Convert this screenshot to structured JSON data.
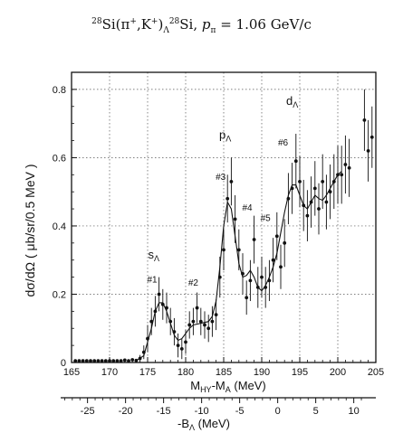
{
  "chart_data": {
    "type": "scatter",
    "title": {
      "reaction_prefix": "28",
      "reaction_main1": "Si(π",
      "reaction_sup1": "+",
      "reaction_main2": ",K",
      "reaction_sup2": "+",
      "reaction_main3": ")",
      "reaction_lambda_sub": "Λ",
      "reaction_sup3": "28",
      "reaction_main4": "Si, ",
      "momentum_symbol": "p",
      "momentum_sub": "π",
      "momentum_value": " = 1.06 GeV/c"
    },
    "ylabel": "dσ/dΩ ( μb/sr/0.5 MeV )",
    "xlabel": "M_HY-M_A  (MeV)",
    "xlabel_main": "M",
    "xlabel_sub1": "HY",
    "xlabel_mid": "-M",
    "xlabel_sub2": "A",
    "xlabel_unit": "  (MeV)",
    "xlabel2_main": "-B",
    "xlabel2_sub": "Λ",
    "xlabel2_unit": "  (MeV)",
    "xlim": [
      165,
      205
    ],
    "ylim": [
      0,
      0.85
    ],
    "xticks": [
      "165",
      "170",
      "175",
      "180",
      "185",
      "190",
      "195",
      "200",
      "205"
    ],
    "yticks": [
      "0",
      "0.2",
      "0.4",
      "0.6",
      "0.8"
    ],
    "x2_offset": 192.1,
    "x2ticks": [
      "-25",
      "-20",
      "-15",
      "-10",
      "-5",
      "0",
      "5",
      "10"
    ],
    "grid": true,
    "annotations": [
      {
        "main": "s",
        "sub": "Λ",
        "x": 175.8,
        "y": 0.305
      },
      {
        "main": "p",
        "sub": "Λ",
        "x": 185.2,
        "y": 0.655
      },
      {
        "main": "d",
        "sub": "Λ",
        "x": 194.0,
        "y": 0.755
      },
      {
        "main": "#1",
        "sub": "",
        "x": 175.6,
        "y": 0.235
      },
      {
        "main": "#2",
        "sub": "",
        "x": 181.0,
        "y": 0.225
      },
      {
        "main": "#3",
        "sub": "",
        "x": 184.6,
        "y": 0.535
      },
      {
        "main": "#4",
        "sub": "",
        "x": 188.1,
        "y": 0.445
      },
      {
        "main": "#5",
        "sub": "",
        "x": 190.5,
        "y": 0.415
      },
      {
        "main": "#6",
        "sub": "",
        "x": 192.8,
        "y": 0.635
      }
    ],
    "series": [
      {
        "points": [
          [
            165.5,
            0.005,
            0.006
          ],
          [
            166.0,
            0.005,
            0.006
          ],
          [
            166.5,
            0.005,
            0.006
          ],
          [
            167.0,
            0.005,
            0.006
          ],
          [
            167.5,
            0.005,
            0.006
          ],
          [
            168.0,
            0.005,
            0.006
          ],
          [
            168.5,
            0.005,
            0.006
          ],
          [
            169.0,
            0.005,
            0.006
          ],
          [
            169.5,
            0.005,
            0.006
          ],
          [
            170.0,
            0.005,
            0.006
          ],
          [
            170.5,
            0.005,
            0.006
          ],
          [
            171.0,
            0.005,
            0.006
          ],
          [
            171.5,
            0.005,
            0.006
          ],
          [
            172.0,
            0.007,
            0.006
          ],
          [
            172.5,
            0.005,
            0.006
          ],
          [
            173.0,
            0.008,
            0.006
          ],
          [
            173.5,
            0.006,
            0.006
          ],
          [
            174.0,
            0.012,
            0.01
          ],
          [
            174.5,
            0.03,
            0.02
          ],
          [
            175.0,
            0.07,
            0.04
          ],
          [
            175.5,
            0.12,
            0.04
          ],
          [
            176.0,
            0.15,
            0.045
          ],
          [
            176.5,
            0.2,
            0.05
          ],
          [
            177.0,
            0.17,
            0.045
          ],
          [
            177.5,
            0.16,
            0.045
          ],
          [
            178.0,
            0.12,
            0.04
          ],
          [
            178.5,
            0.09,
            0.04
          ],
          [
            179.0,
            0.05,
            0.035
          ],
          [
            179.5,
            0.04,
            0.03
          ],
          [
            180.0,
            0.06,
            0.035
          ],
          [
            180.5,
            0.11,
            0.04
          ],
          [
            181.0,
            0.12,
            0.04
          ],
          [
            181.5,
            0.16,
            0.045
          ],
          [
            182.0,
            0.12,
            0.04
          ],
          [
            182.5,
            0.11,
            0.04
          ],
          [
            183.0,
            0.1,
            0.04
          ],
          [
            183.5,
            0.12,
            0.045
          ],
          [
            184.0,
            0.14,
            0.045
          ],
          [
            184.5,
            0.25,
            0.06
          ],
          [
            185.0,
            0.33,
            0.06
          ],
          [
            185.5,
            0.48,
            0.07
          ],
          [
            186.0,
            0.53,
            0.07
          ],
          [
            186.5,
            0.42,
            0.07
          ],
          [
            187.0,
            0.33,
            0.06
          ],
          [
            187.5,
            0.26,
            0.06
          ],
          [
            188.0,
            0.19,
            0.05
          ],
          [
            188.5,
            0.24,
            0.06
          ],
          [
            189.0,
            0.36,
            0.07
          ],
          [
            189.5,
            0.22,
            0.06
          ],
          [
            190.0,
            0.25,
            0.06
          ],
          [
            190.5,
            0.22,
            0.06
          ],
          [
            191.0,
            0.24,
            0.06
          ],
          [
            191.5,
            0.3,
            0.065
          ],
          [
            192.0,
            0.37,
            0.07
          ],
          [
            192.5,
            0.28,
            0.065
          ],
          [
            193.0,
            0.35,
            0.07
          ],
          [
            193.5,
            0.48,
            0.075
          ],
          [
            194.0,
            0.51,
            0.075
          ],
          [
            194.5,
            0.59,
            0.08
          ],
          [
            195.0,
            0.53,
            0.075
          ],
          [
            195.5,
            0.46,
            0.075
          ],
          [
            196.0,
            0.43,
            0.075
          ],
          [
            196.5,
            0.47,
            0.075
          ],
          [
            197.0,
            0.51,
            0.08
          ],
          [
            197.5,
            0.45,
            0.075
          ],
          [
            198.0,
            0.53,
            0.08
          ],
          [
            198.5,
            0.47,
            0.08
          ],
          [
            199.0,
            0.5,
            0.08
          ],
          [
            199.5,
            0.53,
            0.08
          ],
          [
            200.0,
            0.55,
            0.085
          ],
          [
            200.5,
            0.55,
            0.085
          ],
          [
            201.0,
            0.58,
            0.085
          ],
          [
            201.5,
            0.57,
            0.085
          ],
          [
            203.5,
            0.71,
            0.09
          ],
          [
            204.0,
            0.62,
            0.09
          ],
          [
            204.5,
            0.66,
            0.09
          ]
        ]
      },
      {
        "points": [
          [
            173.5,
            0.005
          ],
          [
            174.5,
            0.02
          ],
          [
            175.5,
            0.1
          ],
          [
            176.0,
            0.15
          ],
          [
            176.5,
            0.175
          ],
          [
            177.0,
            0.175
          ],
          [
            177.5,
            0.15
          ],
          [
            178.0,
            0.115
          ],
          [
            178.5,
            0.08
          ],
          [
            179.0,
            0.065
          ],
          [
            179.5,
            0.07
          ],
          [
            180.0,
            0.085
          ],
          [
            180.5,
            0.1
          ],
          [
            181.0,
            0.11
          ],
          [
            182.0,
            0.115
          ],
          [
            183.0,
            0.12
          ],
          [
            183.5,
            0.135
          ],
          [
            184.0,
            0.18
          ],
          [
            184.5,
            0.28
          ],
          [
            185.0,
            0.4
          ],
          [
            185.5,
            0.47
          ],
          [
            186.0,
            0.45
          ],
          [
            186.5,
            0.37
          ],
          [
            187.0,
            0.29
          ],
          [
            187.5,
            0.25
          ],
          [
            188.0,
            0.255
          ],
          [
            188.5,
            0.27
          ],
          [
            189.0,
            0.25
          ],
          [
            189.5,
            0.22
          ],
          [
            190.0,
            0.21
          ],
          [
            190.5,
            0.225
          ],
          [
            191.0,
            0.25
          ],
          [
            191.5,
            0.28
          ],
          [
            192.0,
            0.32
          ],
          [
            192.5,
            0.38
          ],
          [
            193.0,
            0.44
          ],
          [
            193.5,
            0.49
          ],
          [
            194.0,
            0.52
          ],
          [
            194.5,
            0.52
          ],
          [
            195.0,
            0.49
          ],
          [
            195.5,
            0.46
          ],
          [
            196.0,
            0.45
          ],
          [
            196.5,
            0.47
          ],
          [
            197.0,
            0.49
          ],
          [
            197.5,
            0.48
          ],
          [
            198.0,
            0.475
          ],
          [
            198.5,
            0.49
          ],
          [
            199.0,
            0.51
          ],
          [
            199.5,
            0.53
          ],
          [
            200.0,
            0.55
          ],
          [
            200.5,
            0.56
          ]
        ]
      }
    ]
  }
}
